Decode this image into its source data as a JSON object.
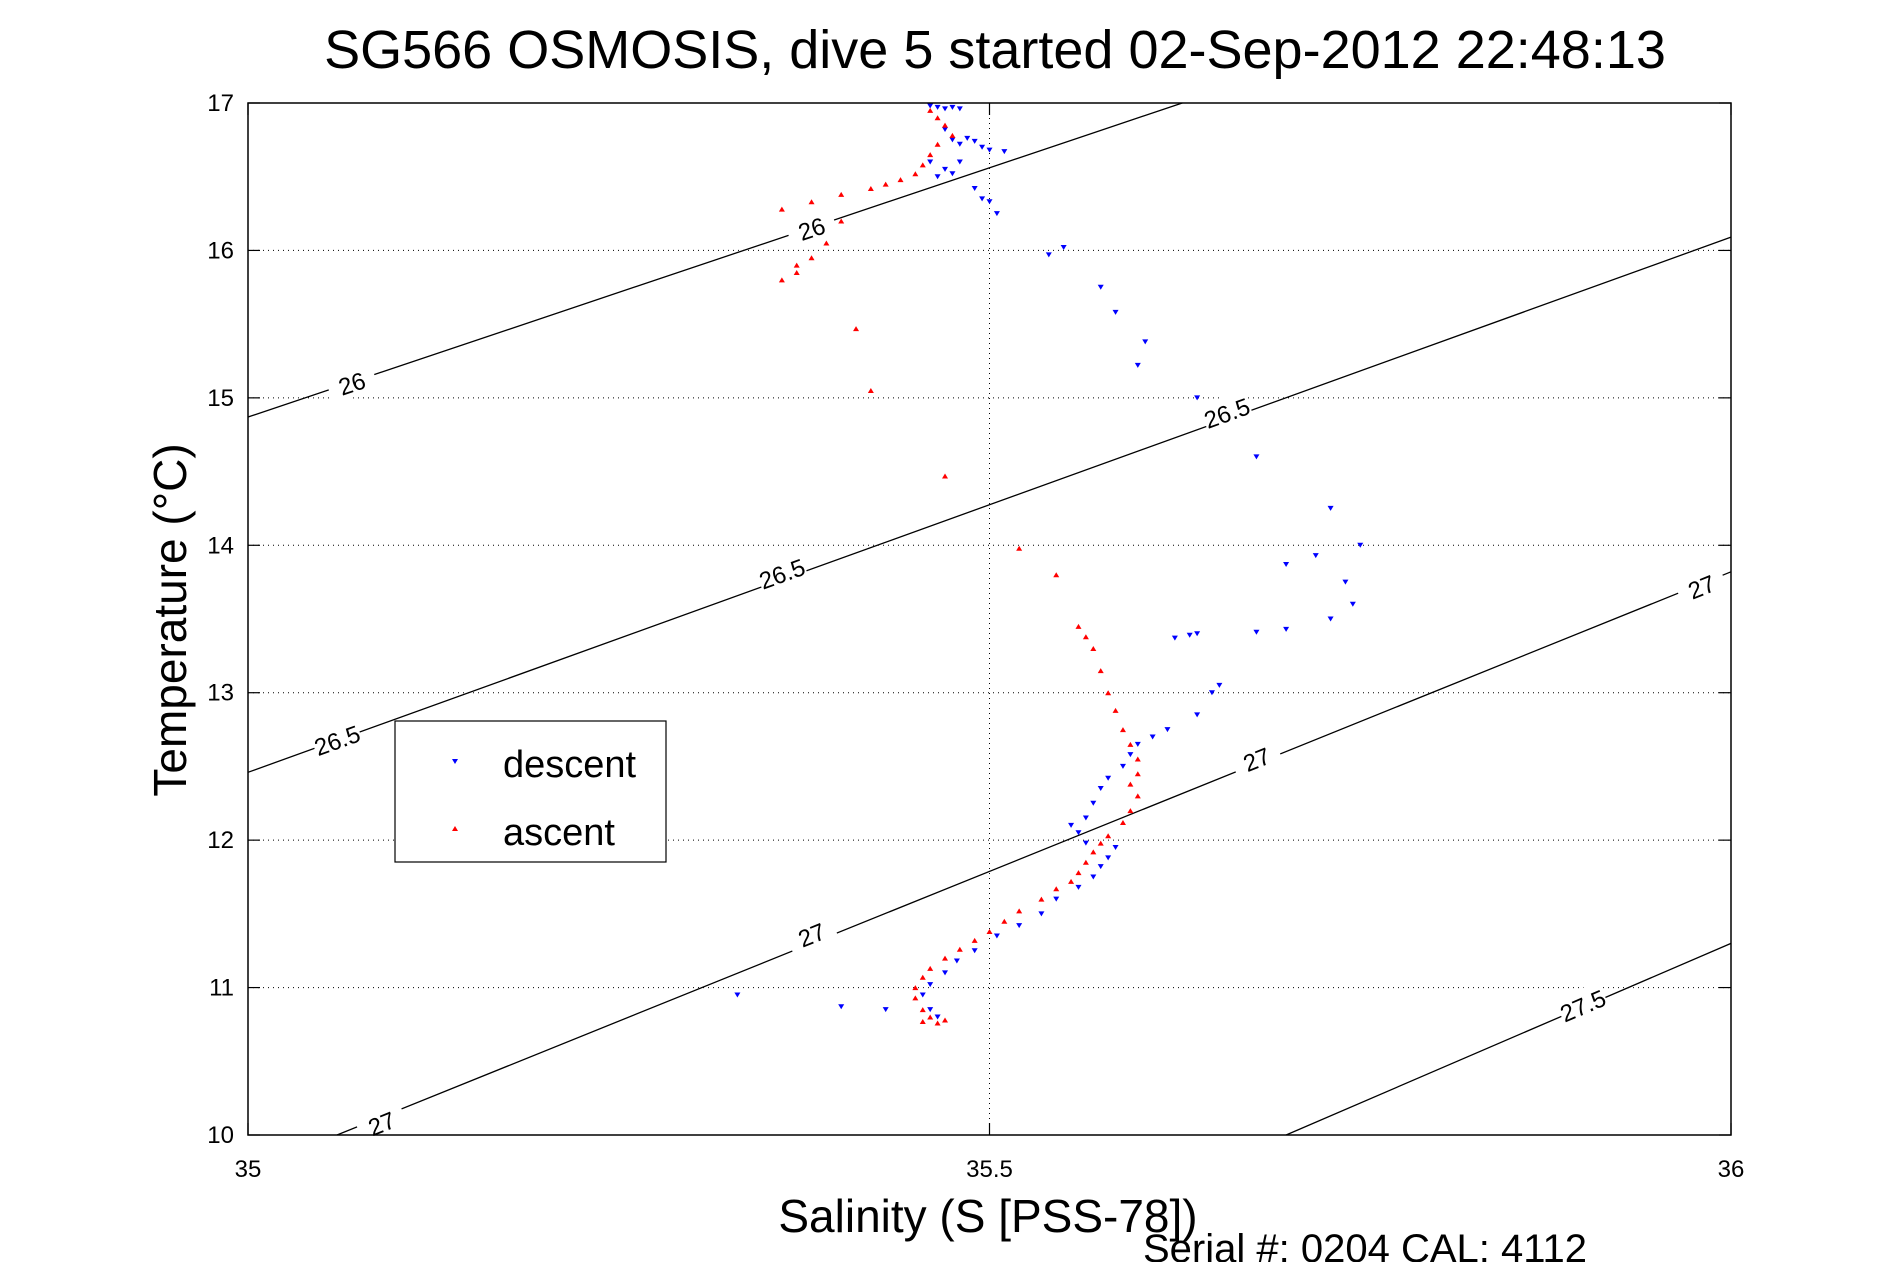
{
  "chart_data": {
    "type": "scatter",
    "title": "SG566 OSMOSIS, dive 5 started 02-Sep-2012 22:48:13",
    "xlabel": "Salinity (S [PSS-78])",
    "ylabel": "Temperature (°C)",
    "footer": "Serial #: 0204  CAL: 4112",
    "xlim": [
      35,
      36
    ],
    "ylim": [
      10,
      17
    ],
    "x_ticks": [
      35,
      35.5,
      36
    ],
    "x_tick_labels": [
      "35",
      "35.5",
      "36"
    ],
    "y_ticks": [
      10,
      11,
      12,
      13,
      14,
      15,
      16,
      17
    ],
    "y_tick_labels": [
      "10",
      "11",
      "12",
      "13",
      "14",
      "15",
      "16",
      "17"
    ],
    "grid": true,
    "legend_position": "center-left",
    "isopycnals": [
      {
        "label": "26",
        "points": [
          [
            35,
            14.87
          ],
          [
            35.63,
            17.0
          ]
        ],
        "label_positions": [
          [
            35.07,
            15.1
          ],
          [
            35.38,
            16.15
          ]
        ]
      },
      {
        "label": "26.5",
        "points": [
          [
            35,
            12.46
          ],
          [
            36,
            16.09
          ]
        ],
        "label_positions": [
          [
            35.06,
            12.68
          ],
          [
            35.36,
            13.81
          ],
          [
            35.66,
            14.9
          ]
        ]
      },
      {
        "label": "27",
        "points": [
          [
            35.06,
            10.0
          ],
          [
            36,
            13.82
          ]
        ],
        "label_positions": [
          [
            35.09,
            10.08
          ],
          [
            35.38,
            11.36
          ],
          [
            35.68,
            12.55
          ],
          [
            35.98,
            13.72
          ]
        ]
      },
      {
        "label": "27.5",
        "points": [
          [
            35.7,
            10.0
          ],
          [
            36,
            11.3
          ]
        ],
        "label_positions": [
          [
            35.9,
            10.88
          ]
        ]
      }
    ],
    "series": [
      {
        "name": "descent",
        "color": "#0000ff",
        "marker": "triangle-down",
        "points": [
          [
            35.46,
            16.98
          ],
          [
            35.465,
            16.97
          ],
          [
            35.47,
            16.96
          ],
          [
            35.475,
            16.97
          ],
          [
            35.48,
            16.96
          ],
          [
            35.47,
            16.82
          ],
          [
            35.475,
            16.75
          ],
          [
            35.48,
            16.72
          ],
          [
            35.485,
            16.76
          ],
          [
            35.49,
            16.74
          ],
          [
            35.495,
            16.7
          ],
          [
            35.5,
            16.68
          ],
          [
            35.51,
            16.67
          ],
          [
            35.48,
            16.6
          ],
          [
            35.47,
            16.55
          ],
          [
            35.475,
            16.52
          ],
          [
            35.465,
            16.5
          ],
          [
            35.46,
            16.6
          ],
          [
            35.49,
            16.42
          ],
          [
            35.495,
            16.35
          ],
          [
            35.5,
            16.33
          ],
          [
            35.505,
            16.25
          ],
          [
            35.54,
            15.97
          ],
          [
            35.55,
            16.02
          ],
          [
            35.575,
            15.75
          ],
          [
            35.585,
            15.58
          ],
          [
            35.605,
            15.38
          ],
          [
            35.6,
            15.22
          ],
          [
            35.64,
            15.0
          ],
          [
            35.68,
            14.6
          ],
          [
            35.73,
            14.25
          ],
          [
            35.75,
            14.0
          ],
          [
            35.7,
            13.87
          ],
          [
            35.72,
            13.93
          ],
          [
            35.74,
            13.75
          ],
          [
            35.745,
            13.6
          ],
          [
            35.73,
            13.5
          ],
          [
            35.7,
            13.43
          ],
          [
            35.68,
            13.41
          ],
          [
            35.64,
            13.4
          ],
          [
            35.635,
            13.39
          ],
          [
            35.625,
            13.37
          ],
          [
            35.655,
            13.05
          ],
          [
            35.65,
            13.0
          ],
          [
            35.64,
            12.85
          ],
          [
            35.62,
            12.75
          ],
          [
            35.61,
            12.7
          ],
          [
            35.6,
            12.65
          ],
          [
            35.595,
            12.58
          ],
          [
            35.59,
            12.5
          ],
          [
            35.58,
            12.42
          ],
          [
            35.575,
            12.35
          ],
          [
            35.57,
            12.25
          ],
          [
            35.565,
            12.15
          ],
          [
            35.555,
            12.1
          ],
          [
            35.56,
            12.05
          ],
          [
            35.565,
            11.98
          ],
          [
            35.585,
            11.95
          ],
          [
            35.58,
            11.88
          ],
          [
            35.575,
            11.82
          ],
          [
            35.57,
            11.75
          ],
          [
            35.56,
            11.68
          ],
          [
            35.545,
            11.6
          ],
          [
            35.535,
            11.5
          ],
          [
            35.52,
            11.42
          ],
          [
            35.505,
            11.35
          ],
          [
            35.49,
            11.25
          ],
          [
            35.478,
            11.18
          ],
          [
            35.47,
            11.1
          ],
          [
            35.46,
            11.02
          ],
          [
            35.455,
            10.95
          ],
          [
            35.46,
            10.85
          ],
          [
            35.465,
            10.8
          ],
          [
            35.33,
            10.95
          ],
          [
            35.4,
            10.87
          ],
          [
            35.43,
            10.85
          ]
        ]
      },
      {
        "name": "ascent",
        "color": "#ff0000",
        "marker": "triangle-up",
        "points": [
          [
            35.46,
            16.95
          ],
          [
            35.465,
            16.9
          ],
          [
            35.47,
            16.85
          ],
          [
            35.475,
            16.78
          ],
          [
            35.465,
            16.72
          ],
          [
            35.46,
            16.65
          ],
          [
            35.455,
            16.58
          ],
          [
            35.45,
            16.52
          ],
          [
            35.44,
            16.48
          ],
          [
            35.43,
            16.45
          ],
          [
            35.42,
            16.42
          ],
          [
            35.4,
            16.38
          ],
          [
            35.38,
            16.33
          ],
          [
            35.36,
            16.28
          ],
          [
            35.4,
            16.2
          ],
          [
            35.39,
            16.05
          ],
          [
            35.38,
            15.95
          ],
          [
            35.37,
            15.9
          ],
          [
            35.37,
            15.85
          ],
          [
            35.36,
            15.8
          ],
          [
            35.41,
            15.47
          ],
          [
            35.42,
            15.05
          ],
          [
            35.47,
            14.47
          ],
          [
            35.52,
            13.98
          ],
          [
            35.545,
            13.8
          ],
          [
            35.56,
            13.45
          ],
          [
            35.565,
            13.38
          ],
          [
            35.57,
            13.3
          ],
          [
            35.575,
            13.15
          ],
          [
            35.58,
            13.0
          ],
          [
            35.585,
            12.88
          ],
          [
            35.59,
            12.75
          ],
          [
            35.595,
            12.65
          ],
          [
            35.6,
            12.55
          ],
          [
            35.6,
            12.45
          ],
          [
            35.595,
            12.38
          ],
          [
            35.6,
            12.3
          ],
          [
            35.595,
            12.2
          ],
          [
            35.59,
            12.12
          ],
          [
            35.58,
            12.03
          ],
          [
            35.575,
            11.98
          ],
          [
            35.57,
            11.92
          ],
          [
            35.565,
            11.85
          ],
          [
            35.56,
            11.78
          ],
          [
            35.555,
            11.72
          ],
          [
            35.545,
            11.67
          ],
          [
            35.535,
            11.6
          ],
          [
            35.52,
            11.52
          ],
          [
            35.51,
            11.45
          ],
          [
            35.5,
            11.38
          ],
          [
            35.49,
            11.32
          ],
          [
            35.48,
            11.26
          ],
          [
            35.47,
            11.2
          ],
          [
            35.46,
            11.13
          ],
          [
            35.455,
            11.07
          ],
          [
            35.45,
            11.0
          ],
          [
            35.45,
            10.93
          ],
          [
            35.455,
            10.85
          ],
          [
            35.46,
            10.8
          ],
          [
            35.47,
            10.78
          ],
          [
            35.455,
            10.77
          ],
          [
            35.465,
            10.76
          ]
        ]
      }
    ]
  }
}
